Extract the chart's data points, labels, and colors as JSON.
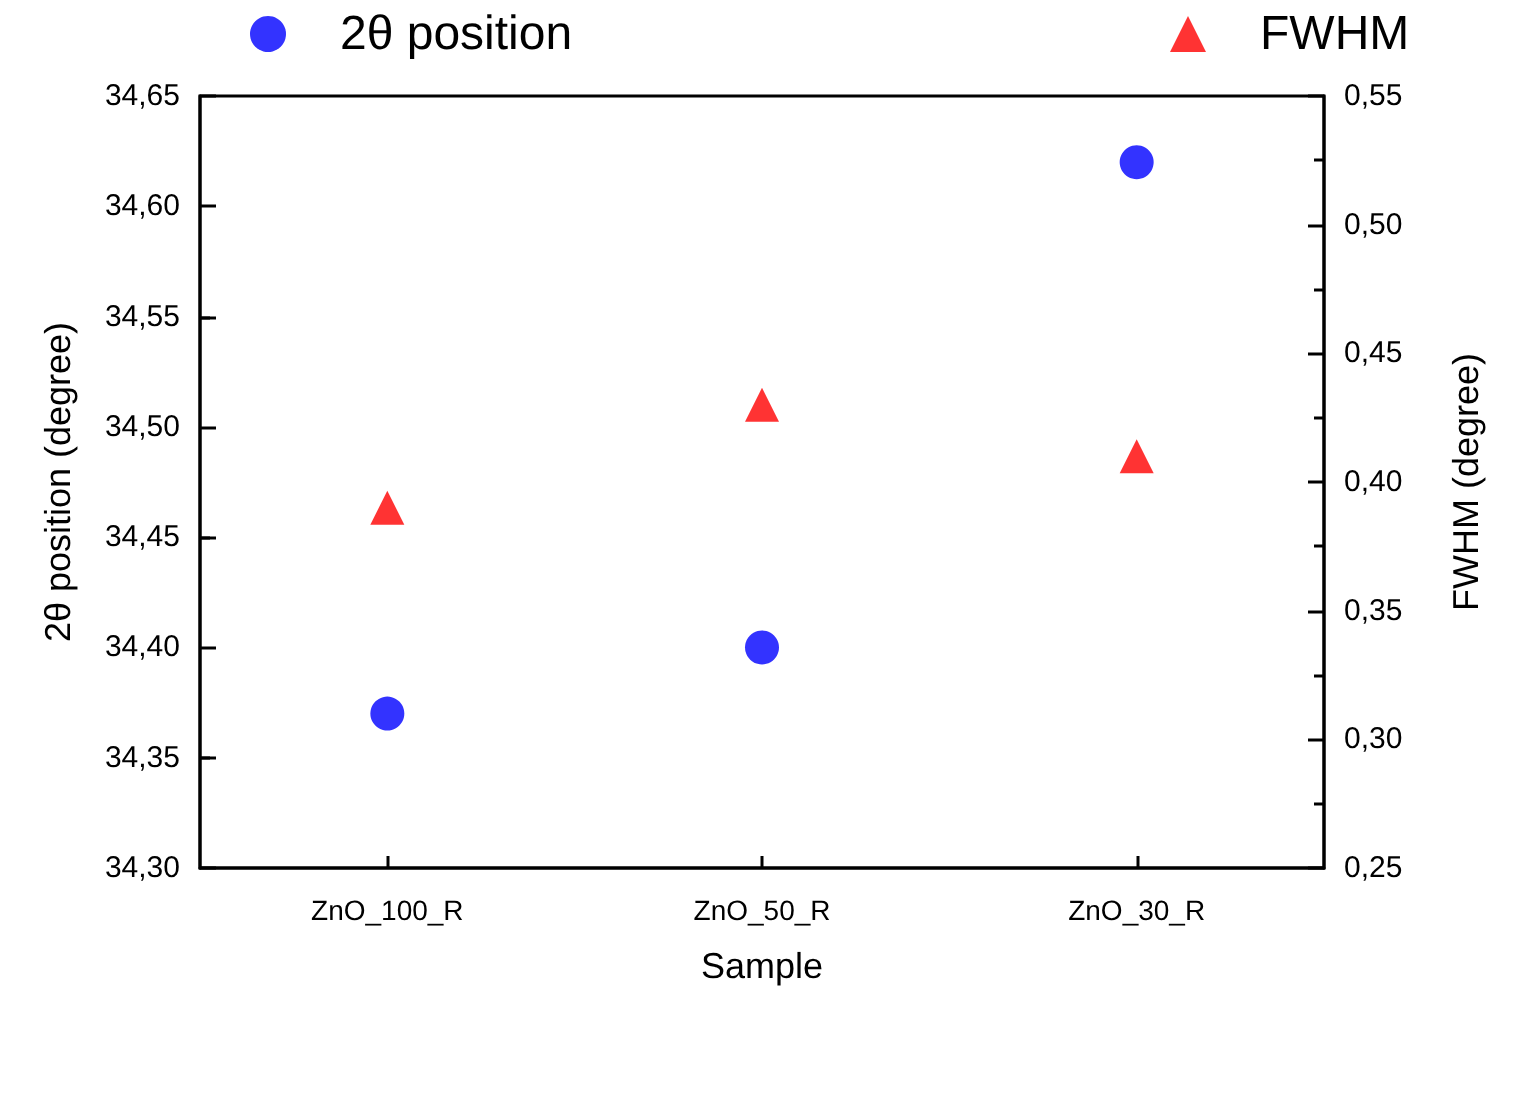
{
  "chart_data": {
    "type": "scatter",
    "xlabel": "Sample",
    "ylabel": "2θ position (degree)",
    "y2label": "FWHM (degree)",
    "categories": [
      "ZnO_100_R",
      "ZnO_50_R",
      "ZnO_30_R"
    ],
    "series": [
      {
        "name": "2θ position",
        "color": "#0000ff",
        "marker": "circle",
        "values": [
          34.37,
          34.4,
          34.62
        ]
      },
      {
        "name": "FWHM",
        "color": "#ff0000",
        "marker": "triangle",
        "axis": "y2",
        "values": [
          0.39,
          0.43,
          0.41
        ]
      }
    ],
    "ylim": [
      34.3,
      34.65
    ],
    "yticks": [
      {
        "value": 34.3,
        "label": "34,30"
      },
      {
        "value": 34.35,
        "label": "34,35"
      },
      {
        "value": 34.4,
        "label": "34,40"
      },
      {
        "value": 34.45,
        "label": "34,45"
      },
      {
        "value": 34.5,
        "label": "34,50"
      },
      {
        "value": 34.55,
        "label": "34,55"
      },
      {
        "value": 34.6,
        "label": "34,60"
      },
      {
        "value": 34.65,
        "label": "34,65"
      }
    ],
    "y2lim": [
      0.25,
      0.55
    ],
    "y2ticks": [
      {
        "value": 0.25,
        "label": "0,25"
      },
      {
        "value": 0.3,
        "label": "0,30"
      },
      {
        "value": 0.35,
        "label": "0,35"
      },
      {
        "value": 0.4,
        "label": "0,40"
      },
      {
        "value": 0.45,
        "label": "0,45"
      },
      {
        "value": 0.5,
        "label": "0,50"
      },
      {
        "value": 0.55,
        "label": "0,55"
      }
    ],
    "grid": false,
    "legend": "top"
  }
}
